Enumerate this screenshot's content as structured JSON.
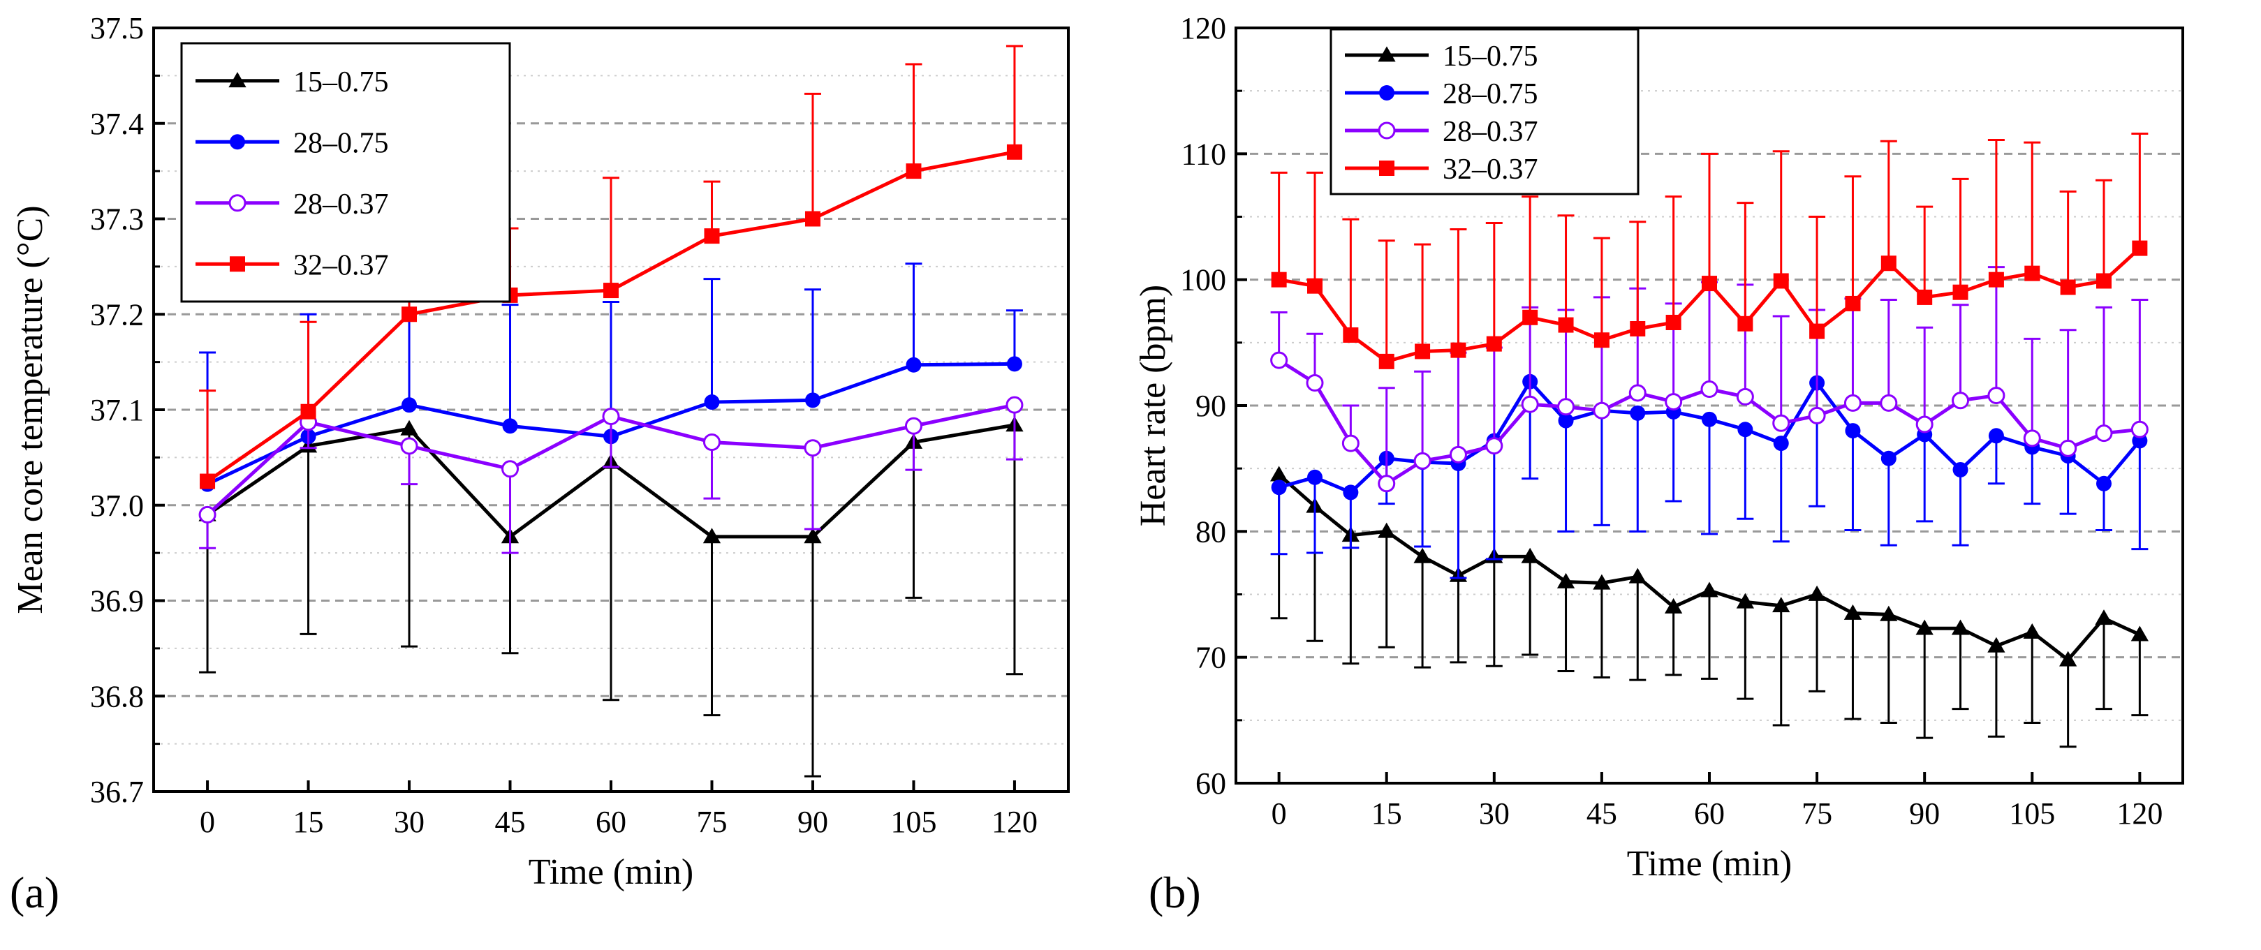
{
  "chart_data": [
    {
      "type": "line",
      "panel_label": "(a)",
      "title": "",
      "xlabel": "Time (min)",
      "ylabel": "Mean core temperature (°C)",
      "xlim": [
        -8,
        128
      ],
      "ylim": [
        36.7,
        37.5
      ],
      "xticks": [
        0,
        15,
        30,
        45,
        60,
        75,
        90,
        105,
        120
      ],
      "yticks": [
        36.7,
        36.8,
        36.9,
        37.0,
        37.1,
        37.2,
        37.3,
        37.4,
        37.5
      ],
      "ytick_labels": [
        "36.7",
        "36.8",
        "36.9",
        "37.0",
        "37.1",
        "37.2",
        "37.3",
        "37.4",
        "37.5"
      ],
      "grid": true,
      "legend_position": "top-left",
      "x": [
        0,
        15,
        30,
        45,
        60,
        75,
        90,
        105,
        120
      ],
      "series": [
        {
          "name": "15–0.75",
          "color": "#000000",
          "marker": "triangle",
          "err_dir": "down",
          "values": [
            36.99,
            37.062,
            37.08,
            36.967,
            37.045,
            36.967,
            36.967,
            37.066,
            37.084
          ],
          "err_end": [
            36.825,
            36.865,
            36.852,
            36.845,
            36.796,
            36.78,
            36.716,
            36.903,
            36.823
          ]
        },
        {
          "name": "28–0.75",
          "color": "#0000ff",
          "marker": "circle",
          "err_dir": "up",
          "values": [
            37.022,
            37.072,
            37.105,
            37.083,
            37.072,
            37.108,
            37.11,
            37.147,
            37.148
          ],
          "err_end": [
            37.16,
            37.2,
            37.25,
            37.21,
            37.213,
            37.237,
            37.226,
            37.253,
            37.204
          ]
        },
        {
          "name": "28–0.37",
          "color": "#8b00ff",
          "marker": "open-circle",
          "err_dir": "down",
          "values": [
            36.99,
            37.087,
            37.062,
            37.038,
            37.093,
            37.066,
            37.06,
            37.083,
            37.105
          ],
          "err_end": [
            36.955,
            37.06,
            37.022,
            36.95,
            37.04,
            37.007,
            36.975,
            37.037,
            37.048
          ]
        },
        {
          "name": "32–0.37",
          "color": "#ff0000",
          "marker": "square",
          "err_dir": "up",
          "values": [
            37.025,
            37.098,
            37.2,
            37.22,
            37.225,
            37.282,
            37.3,
            37.35,
            37.37
          ],
          "err_end": [
            37.12,
            37.192,
            37.27,
            37.29,
            37.343,
            37.339,
            37.431,
            37.462,
            37.481
          ]
        }
      ]
    },
    {
      "type": "line",
      "panel_label": "(b)",
      "title": "",
      "xlabel": "Time (min)",
      "ylabel": "Heart rate (bpm)",
      "xlim": [
        -6,
        126
      ],
      "ylim": [
        60,
        120
      ],
      "xticks": [
        0,
        15,
        30,
        45,
        60,
        75,
        90,
        105,
        120
      ],
      "yticks": [
        60,
        70,
        80,
        90,
        100,
        110,
        120
      ],
      "ytick_labels": [
        "60",
        "70",
        "80",
        "90",
        "100",
        "110",
        "120"
      ],
      "grid": true,
      "legend_position": "top-left",
      "x": [
        0,
        5,
        10,
        15,
        20,
        25,
        30,
        35,
        40,
        45,
        50,
        55,
        60,
        65,
        70,
        75,
        80,
        85,
        90,
        95,
        100,
        105,
        110,
        115,
        120
      ],
      "series": [
        {
          "name": "15–0.75",
          "color": "#000000",
          "marker": "triangle",
          "err_dir": "down",
          "values": [
            84.5,
            82,
            79.7,
            80,
            78,
            76.5,
            78,
            78,
            76,
            75.9,
            76.4,
            74,
            75.3,
            74.4,
            74.1,
            75,
            73.5,
            73.4,
            72.3,
            72.3,
            70.9,
            72,
            69.8,
            73.1,
            71.8
          ],
          "err_end": [
            73.1,
            71.3,
            69.5,
            70.8,
            69.2,
            69.6,
            69.3,
            70.2,
            68.9,
            68.4,
            68.2,
            68.6,
            68.3,
            66.7,
            64.6,
            67.3,
            65.1,
            64.8,
            63.6,
            65.9,
            63.7,
            64.8,
            62.9,
            65.9,
            65.4
          ]
        },
        {
          "name": "28–0.75",
          "color": "#0000ff",
          "marker": "circle",
          "err_dir": "down",
          "values": [
            83.5,
            84.3,
            83.1,
            85.8,
            85.5,
            85.4,
            87.2,
            91.9,
            88.8,
            89.6,
            89.4,
            89.5,
            88.9,
            88.1,
            87.0,
            91.8,
            88.0,
            85.8,
            87.7,
            84.9,
            87.6,
            86.7,
            86.0,
            83.8,
            87.2
          ],
          "err_end": [
            78.2,
            78.3,
            78.7,
            82.2,
            78.8,
            76.3,
            77.8,
            84.2,
            80.0,
            80.5,
            80.0,
            82.4,
            79.8,
            81.0,
            79.2,
            82.0,
            80.1,
            78.9,
            80.8,
            78.9,
            83.8,
            82.2,
            81.4,
            80.1,
            78.6
          ]
        },
        {
          "name": "28–0.37",
          "color": "#8b00ff",
          "marker": "open-circle",
          "err_dir": "up",
          "values": [
            93.6,
            91.8,
            87.0,
            83.8,
            85.6,
            86.1,
            86.8,
            90.1,
            89.9,
            89.6,
            91.0,
            90.3,
            91.3,
            90.7,
            88.6,
            89.2,
            90.2,
            90.2,
            88.5,
            90.4,
            90.8,
            87.4,
            86.6,
            87.8,
            88.1
          ],
          "err_end": [
            97.4,
            95.7,
            90.0,
            91.4,
            92.7,
            94.2,
            94.6,
            97.8,
            97.6,
            98.6,
            99.3,
            98.1,
            99.8,
            99.6,
            97.1,
            97.6,
            98.5,
            98.4,
            96.2,
            98.0,
            101.0,
            95.3,
            96.0,
            97.8,
            98.4
          ]
        },
        {
          "name": "32–0.37",
          "color": "#ff0000",
          "marker": "square",
          "err_dir": "up",
          "values": [
            100.0,
            99.5,
            95.6,
            93.5,
            94.3,
            94.4,
            94.9,
            97.0,
            96.4,
            95.2,
            96.1,
            96.6,
            99.7,
            96.5,
            99.9,
            95.9,
            98.1,
            101.3,
            98.6,
            99.0,
            100.0,
            100.5,
            99.4,
            99.9,
            102.5
          ],
          "err_end": [
            108.5,
            108.5,
            104.8,
            103.1,
            102.8,
            104.0,
            104.5,
            106.6,
            105.1,
            103.3,
            104.6,
            106.6,
            110.0,
            106.1,
            110.2,
            105.0,
            108.2,
            111.0,
            105.8,
            108.0,
            111.1,
            110.9,
            107.0,
            107.9,
            111.6
          ]
        }
      ]
    }
  ]
}
